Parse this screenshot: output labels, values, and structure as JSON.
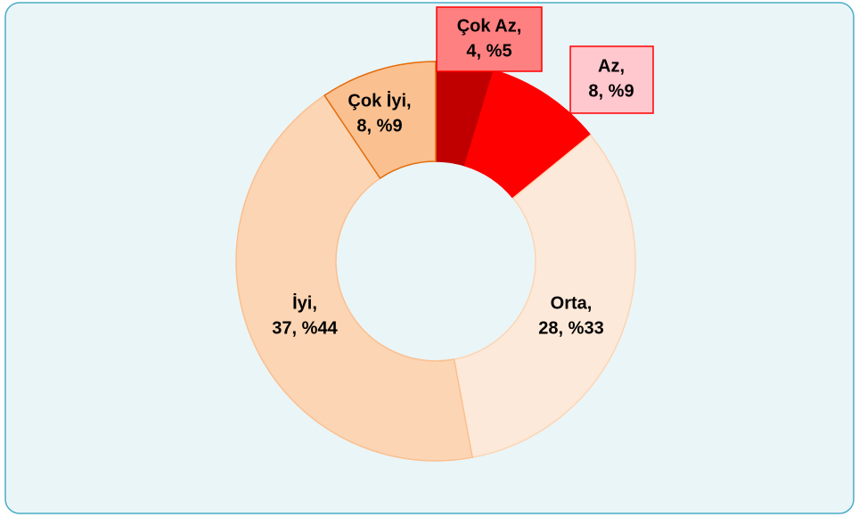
{
  "chart_data": {
    "type": "donut",
    "categories": [
      "Çok Az,",
      "Az,",
      "Orta,",
      "İyi,",
      "Çok İyi,"
    ],
    "values": [
      4,
      8,
      28,
      37,
      8
    ],
    "value_labels": [
      "4, %5",
      "8, %9",
      "28, %33",
      "37, %44",
      "8, %9"
    ],
    "colors": [
      "#c00000",
      "#ff0000",
      "#fde9d9",
      "#fcd5b4",
      "#fac090"
    ],
    "edgecolors": [
      "#c00000",
      "#ff0000",
      "#fcd5b4",
      "#fac090",
      "#e46c0a"
    ]
  }
}
